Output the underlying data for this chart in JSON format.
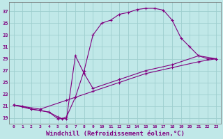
{
  "background_color": "#c0e8e8",
  "grid_color": "#9ecece",
  "line_color": "#800080",
  "marker_color": "#800080",
  "xlabel": "Windchill (Refroidissement éolien,°C)",
  "xlabel_fontsize": 6.5,
  "ylabel_ticks": [
    19,
    21,
    23,
    25,
    27,
    29,
    31,
    33,
    35,
    37
  ],
  "xtick_labels": [
    "0",
    "1",
    "2",
    "3",
    "4",
    "5",
    "6",
    "7",
    "8",
    "9",
    "10",
    "11",
    "12",
    "13",
    "14",
    "15",
    "16",
    "17",
    "18",
    "19",
    "20",
    "21",
    "22",
    "23"
  ],
  "ylim": [
    18.0,
    38.5
  ],
  "xlim": [
    -0.5,
    23.5
  ],
  "series1": [
    [
      0,
      21.2
    ],
    [
      1,
      21.0
    ],
    [
      2,
      20.5
    ],
    [
      3,
      20.3
    ],
    [
      4,
      20.0
    ],
    [
      5,
      19.2
    ],
    [
      5.5,
      18.9
    ],
    [
      6,
      19.2
    ],
    [
      7,
      22.5
    ],
    [
      8,
      27.0
    ],
    [
      9,
      33.0
    ],
    [
      10,
      35.0
    ],
    [
      11,
      35.5
    ],
    [
      12,
      36.5
    ],
    [
      13,
      36.8
    ],
    [
      14,
      37.3
    ],
    [
      15,
      37.5
    ],
    [
      16,
      37.5
    ],
    [
      17,
      37.2
    ],
    [
      18,
      35.5
    ],
    [
      19,
      32.5
    ],
    [
      20,
      31.0
    ],
    [
      21,
      29.5
    ],
    [
      22,
      29.0
    ],
    [
      23,
      29.0
    ]
  ],
  "series2": [
    [
      0,
      21.2
    ],
    [
      2,
      20.5
    ],
    [
      4,
      20.0
    ],
    [
      5,
      18.9
    ],
    [
      6,
      18.9
    ],
    [
      7,
      29.5
    ],
    [
      8,
      26.5
    ],
    [
      9,
      24.0
    ],
    [
      12,
      25.5
    ],
    [
      15,
      27.0
    ],
    [
      18,
      28.0
    ],
    [
      21,
      29.5
    ],
    [
      23,
      29.0
    ]
  ],
  "series3": [
    [
      0,
      21.2
    ],
    [
      3,
      20.5
    ],
    [
      6,
      22.0
    ],
    [
      9,
      23.5
    ],
    [
      12,
      25.0
    ],
    [
      15,
      26.5
    ],
    [
      18,
      27.5
    ],
    [
      21,
      28.5
    ],
    [
      23,
      29.0
    ]
  ]
}
